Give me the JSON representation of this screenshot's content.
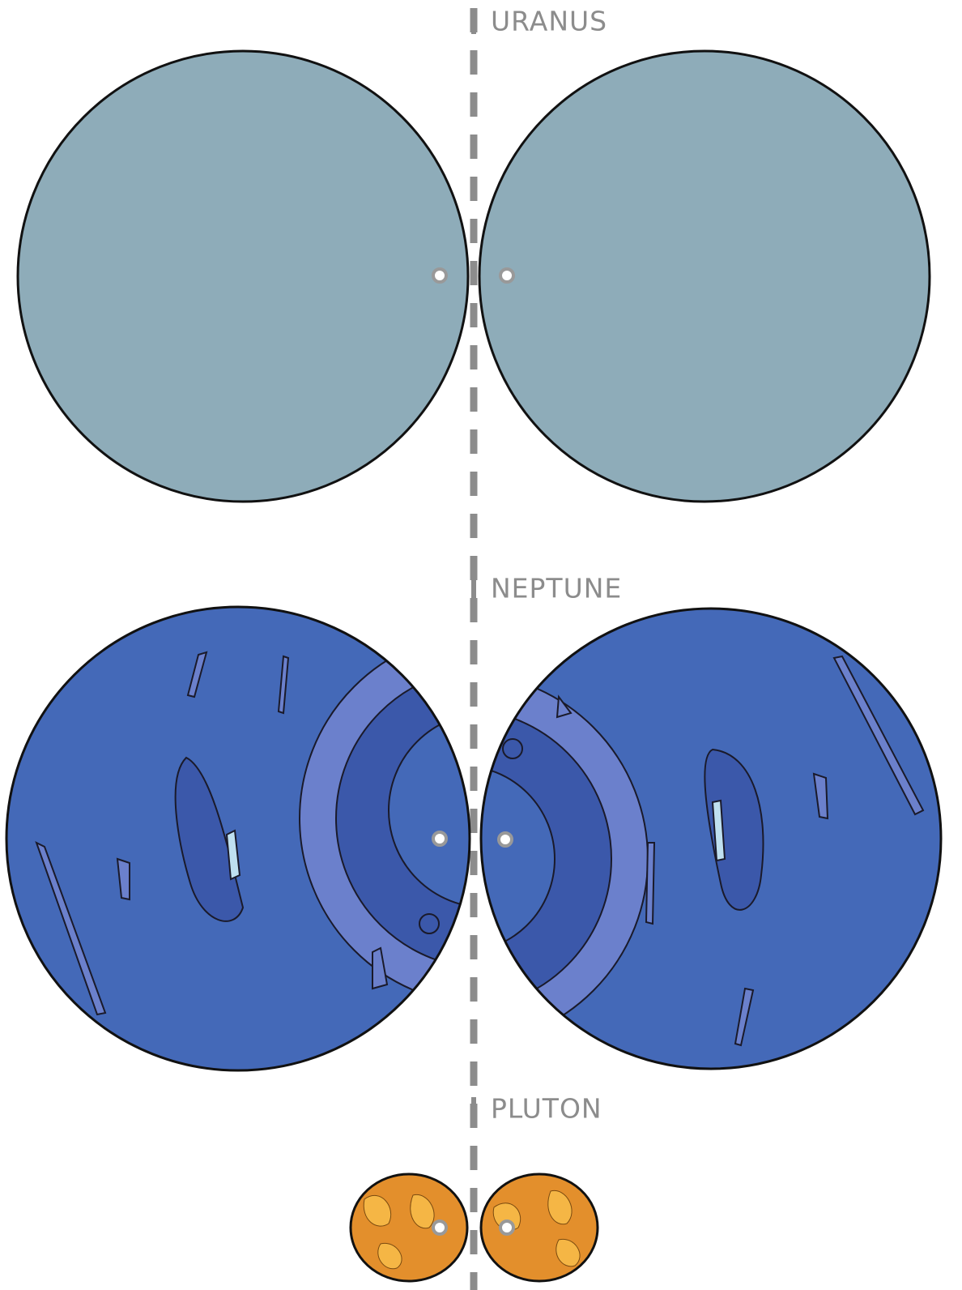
{
  "labels": [
    "URANUS",
    "NEPTUNE",
    "PLUTON"
  ]
}
